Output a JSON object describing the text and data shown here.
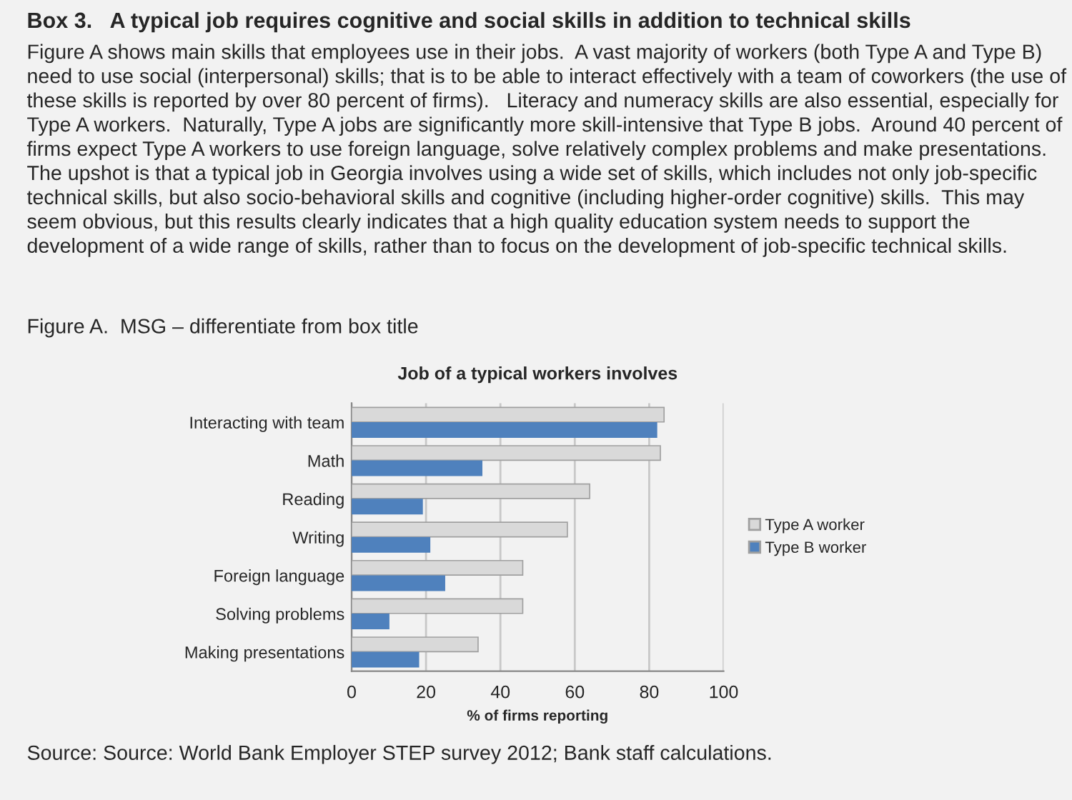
{
  "chart_data": {
    "type": "bar",
    "orientation": "horizontal",
    "title": "Job of a typical workers involves",
    "xlabel": "% of firms reporting",
    "categories": [
      "Interacting with team",
      "Math",
      "Reading",
      "Writing",
      "Foreign language",
      "Solving problems",
      "Making presentations"
    ],
    "series": [
      {
        "name": "Type A worker",
        "color": "#d9d9d9",
        "values": [
          84,
          83,
          64,
          58,
          46,
          46,
          34
        ]
      },
      {
        "name": "Type B worker",
        "color": "#4f81bd",
        "values": [
          82,
          35,
          19,
          21,
          25,
          10,
          18
        ]
      }
    ],
    "xlim": [
      0,
      100
    ],
    "xticks": [
      0,
      20,
      40,
      60,
      80,
      100
    ],
    "grid": "x",
    "legend": "right",
    "annotations": [
      "Box 3.   A typical job requires cognitive and social skills in addition to technical skills",
      "Figure A shows main skills that employees use in their jobs.  A vast majority of workers (both Type A and Type B) need to use social (interpersonal) skills; that is to be able to interact effectively with a team of coworkers (the use of these skills is reported by over 80 percent of firms).   Literacy and numeracy skills are also essential, especially for Type A workers.  Naturally, Type A jobs are significantly more skill-intensive that Type B jobs.  Around 40 percent of firms expect Type A workers to use foreign language, solve relatively complex problems and make presentations.  The upshot is that a typical job in Georgia involves using a wide set of skills, which includes not only job-specific technical skills, but also socio-behavioral skills and cognitive (including higher-order cognitive) skills.  This may seem obvious, but this results clearly indicates that a high quality education system needs to support the development of a wide range of skills, rather than to focus on the development of job-specific technical skills.",
      "Figure A.  MSG – differentiate from box title",
      "Source: Source: World Bank Employer STEP survey 2012; Bank staff calculations."
    ]
  }
}
